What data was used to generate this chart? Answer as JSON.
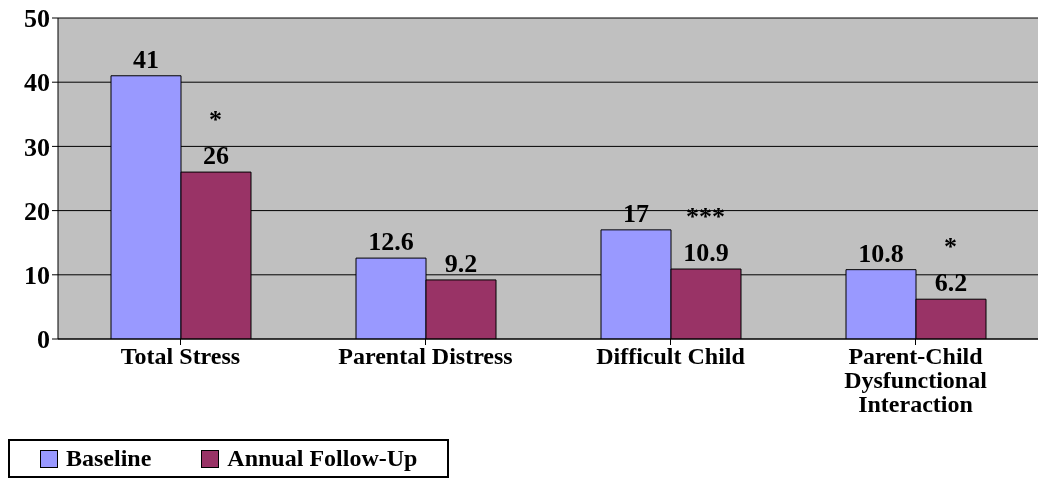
{
  "chart_data": {
    "type": "bar",
    "categories": [
      "Total Stress",
      "Parental Distress",
      "Difficult Child",
      "Parent-Child Dysfunctional Interaction"
    ],
    "series": [
      {
        "name": "Baseline",
        "color": "#9999ff",
        "values": [
          41,
          12.6,
          17,
          10.8
        ]
      },
      {
        "name": "Annual Follow-Up",
        "color": "#993366",
        "values": [
          26,
          9.2,
          10.9,
          6.2
        ]
      }
    ],
    "ylim": [
      0,
      50
    ],
    "yticks": [
      0,
      10,
      20,
      30,
      40,
      50
    ],
    "grid": "y",
    "legend": "bottom",
    "data_labels": true,
    "annotations": [
      {
        "text": "*",
        "x": "Total Stress",
        "y": 26
      },
      {
        "text": "***",
        "x": "Difficult Child",
        "y": 10.9
      },
      {
        "text": "*",
        "x": "Parent-Child Dysfunctional Interaction",
        "y": 6.2
      }
    ]
  }
}
